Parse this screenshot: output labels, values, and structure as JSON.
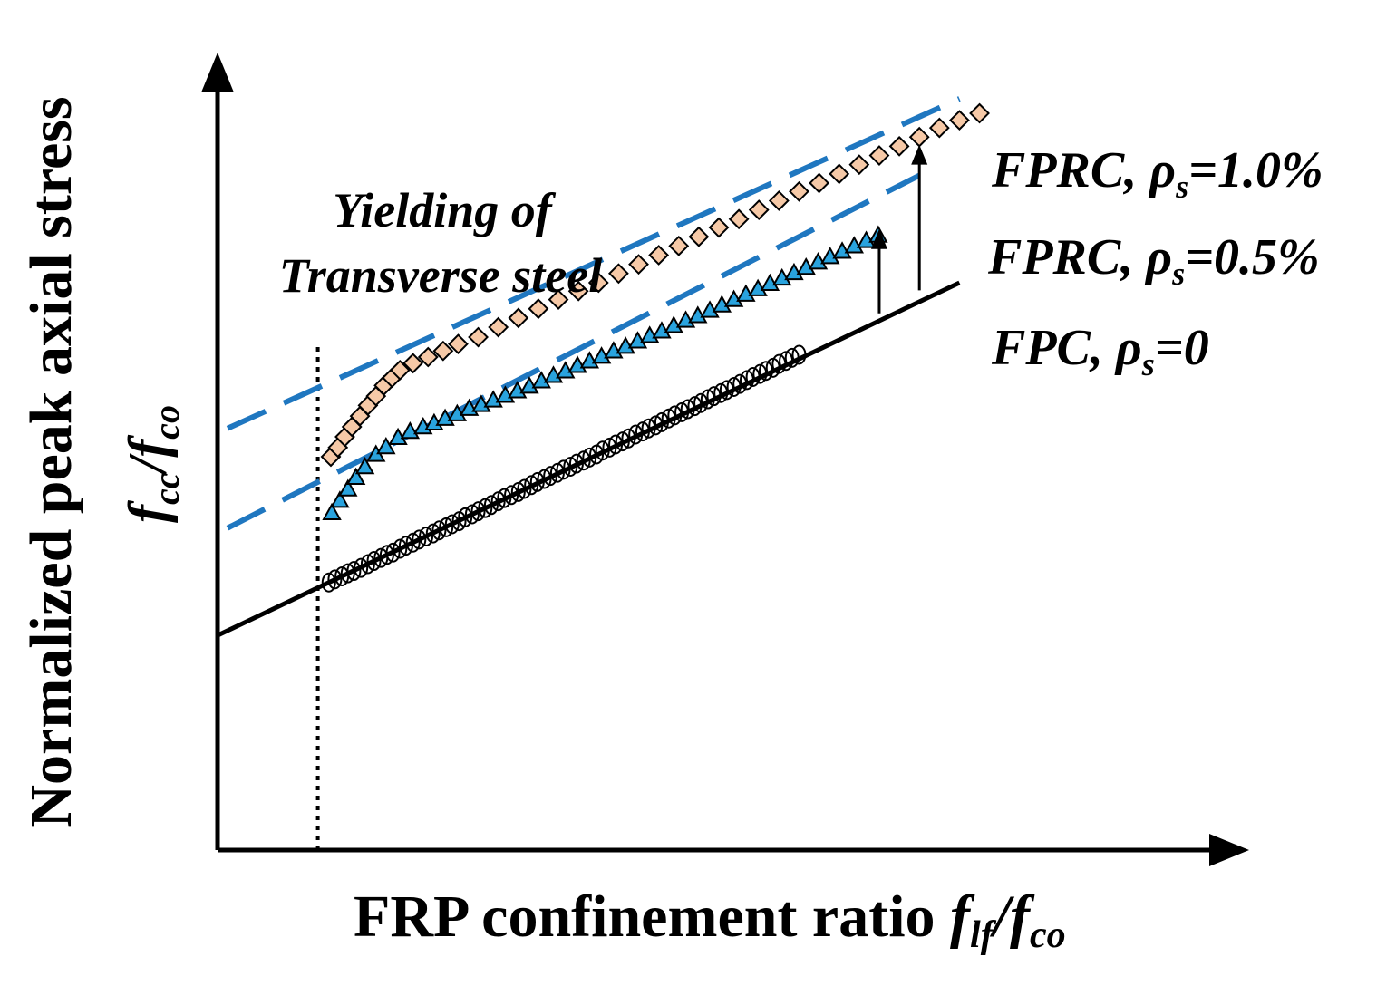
{
  "chart_data": {
    "type": "line",
    "title": "",
    "xlabel": {
      "main": "FRP confinement ratio ",
      "sym": "f",
      "sub1": "lf",
      "slash": "/",
      "sym2": "f",
      "sub2": "co"
    },
    "ylabel": {
      "main": "Normalized peak axial stress",
      "sym": "f",
      "sub1": "cc",
      "slash": "/",
      "sym2": "f",
      "sub2": "co"
    },
    "xlim": [
      0,
      1
    ],
    "ylim": [
      0,
      1
    ],
    "annotation": {
      "line1": "Yielding of",
      "line2": "Transverse steel",
      "x": 0.1
    },
    "series": [
      {
        "name": "FPC",
        "label_prefix": "FPC, ",
        "rho": "ρ",
        "rho_sub": "s",
        "value_text": "=0",
        "color": "#000000",
        "marker": "circle",
        "line": [
          [
            0,
            0.28
          ],
          [
            0.74,
            0.74
          ]
        ],
        "points": [
          [
            0.111,
            0.349
          ],
          [
            0.117,
            0.353
          ],
          [
            0.124,
            0.357
          ],
          [
            0.13,
            0.361
          ],
          [
            0.136,
            0.364
          ],
          [
            0.143,
            0.368
          ],
          [
            0.15,
            0.373
          ],
          [
            0.156,
            0.377
          ],
          [
            0.163,
            0.381
          ],
          [
            0.169,
            0.385
          ],
          [
            0.175,
            0.388
          ],
          [
            0.182,
            0.393
          ],
          [
            0.188,
            0.397
          ],
          [
            0.195,
            0.401
          ],
          [
            0.201,
            0.405
          ],
          [
            0.208,
            0.409
          ],
          [
            0.215,
            0.413
          ],
          [
            0.221,
            0.417
          ],
          [
            0.228,
            0.421
          ],
          [
            0.234,
            0.425
          ],
          [
            0.241,
            0.429
          ],
          [
            0.247,
            0.434
          ],
          [
            0.254,
            0.438
          ],
          [
            0.26,
            0.442
          ],
          [
            0.267,
            0.446
          ],
          [
            0.273,
            0.45
          ],
          [
            0.28,
            0.455
          ],
          [
            0.286,
            0.459
          ],
          [
            0.293,
            0.463
          ],
          [
            0.3,
            0.467
          ],
          [
            0.306,
            0.471
          ],
          [
            0.313,
            0.476
          ],
          [
            0.319,
            0.48
          ],
          [
            0.326,
            0.484
          ],
          [
            0.332,
            0.488
          ],
          [
            0.339,
            0.492
          ],
          [
            0.345,
            0.496
          ],
          [
            0.352,
            0.5
          ],
          [
            0.358,
            0.504
          ],
          [
            0.365,
            0.508
          ],
          [
            0.371,
            0.512
          ],
          [
            0.378,
            0.516
          ],
          [
            0.384,
            0.521
          ],
          [
            0.391,
            0.525
          ],
          [
            0.397,
            0.529
          ],
          [
            0.404,
            0.533
          ],
          [
            0.41,
            0.537
          ],
          [
            0.417,
            0.542
          ],
          [
            0.424,
            0.546
          ],
          [
            0.43,
            0.55
          ],
          [
            0.437,
            0.554
          ],
          [
            0.443,
            0.558
          ],
          [
            0.45,
            0.563
          ],
          [
            0.456,
            0.567
          ],
          [
            0.463,
            0.571
          ],
          [
            0.469,
            0.575
          ],
          [
            0.476,
            0.579
          ],
          [
            0.482,
            0.583
          ],
          [
            0.489,
            0.588
          ],
          [
            0.495,
            0.592
          ],
          [
            0.502,
            0.596
          ],
          [
            0.508,
            0.6
          ],
          [
            0.515,
            0.604
          ],
          [
            0.521,
            0.608
          ],
          [
            0.528,
            0.613
          ],
          [
            0.534,
            0.617
          ],
          [
            0.541,
            0.621
          ],
          [
            0.547,
            0.625
          ],
          [
            0.554,
            0.629
          ],
          [
            0.56,
            0.634
          ],
          [
            0.567,
            0.638
          ],
          [
            0.573,
            0.642
          ],
          [
            0.58,
            0.646
          ]
        ]
      },
      {
        "name": "FPRC, ρs=0.5%",
        "label_prefix": "FPRC, ",
        "rho": "ρ",
        "rho_sub": "s",
        "value_text": "=0.5%",
        "color": "#1f77c0",
        "marker": "triangle",
        "line": [
          [
            0.01,
            0.42
          ],
          [
            0.7,
            0.88
          ]
        ],
        "points": [
          [
            0.114,
            0.44
          ],
          [
            0.122,
            0.456
          ],
          [
            0.13,
            0.471
          ],
          [
            0.138,
            0.486
          ],
          [
            0.147,
            0.5
          ],
          [
            0.158,
            0.516
          ],
          [
            0.168,
            0.526
          ],
          [
            0.18,
            0.538
          ],
          [
            0.192,
            0.546
          ],
          [
            0.205,
            0.552
          ],
          [
            0.216,
            0.557
          ],
          [
            0.227,
            0.563
          ],
          [
            0.239,
            0.569
          ],
          [
            0.251,
            0.576
          ],
          [
            0.263,
            0.581
          ],
          [
            0.275,
            0.587
          ],
          [
            0.287,
            0.593
          ],
          [
            0.299,
            0.599
          ],
          [
            0.311,
            0.605
          ],
          [
            0.323,
            0.612
          ],
          [
            0.335,
            0.619
          ],
          [
            0.347,
            0.625
          ],
          [
            0.359,
            0.632
          ],
          [
            0.371,
            0.638
          ],
          [
            0.383,
            0.644
          ],
          [
            0.395,
            0.651
          ],
          [
            0.407,
            0.657
          ],
          [
            0.419,
            0.664
          ],
          [
            0.431,
            0.671
          ],
          [
            0.443,
            0.677
          ],
          [
            0.455,
            0.684
          ],
          [
            0.467,
            0.691
          ],
          [
            0.479,
            0.697
          ],
          [
            0.491,
            0.704
          ],
          [
            0.503,
            0.711
          ],
          [
            0.515,
            0.718
          ],
          [
            0.527,
            0.725
          ],
          [
            0.539,
            0.732
          ],
          [
            0.551,
            0.739
          ],
          [
            0.563,
            0.746
          ],
          [
            0.575,
            0.753
          ],
          [
            0.587,
            0.76
          ],
          [
            0.599,
            0.767
          ],
          [
            0.611,
            0.774
          ],
          [
            0.623,
            0.781
          ],
          [
            0.635,
            0.788
          ],
          [
            0.647,
            0.795
          ],
          [
            0.659,
            0.802
          ]
        ]
      },
      {
        "name": "FPRC, ρs=1.0%",
        "label_prefix": "FPRC, ",
        "rho": "ρ",
        "rho_sub": "s",
        "value_text": "=1.0%",
        "color": "#1f77c0",
        "marker": "diamond",
        "line": [
          [
            0.01,
            0.55
          ],
          [
            0.74,
            0.98
          ]
        ],
        "points": [
          [
            0.113,
            0.513
          ],
          [
            0.12,
            0.525
          ],
          [
            0.127,
            0.539
          ],
          [
            0.134,
            0.552
          ],
          [
            0.142,
            0.566
          ],
          [
            0.15,
            0.58
          ],
          [
            0.158,
            0.592
          ],
          [
            0.166,
            0.606
          ],
          [
            0.174,
            0.616
          ],
          [
            0.182,
            0.626
          ],
          [
            0.195,
            0.635
          ],
          [
            0.21,
            0.643
          ],
          [
            0.225,
            0.651
          ],
          [
            0.24,
            0.66
          ],
          [
            0.26,
            0.669
          ],
          [
            0.28,
            0.682
          ],
          [
            0.3,
            0.694
          ],
          [
            0.32,
            0.706
          ],
          [
            0.34,
            0.718
          ],
          [
            0.36,
            0.729
          ],
          [
            0.38,
            0.74
          ],
          [
            0.4,
            0.752
          ],
          [
            0.42,
            0.764
          ],
          [
            0.44,
            0.776
          ],
          [
            0.46,
            0.788
          ],
          [
            0.48,
            0.8
          ],
          [
            0.5,
            0.812
          ],
          [
            0.52,
            0.823
          ],
          [
            0.54,
            0.835
          ],
          [
            0.56,
            0.847
          ],
          [
            0.58,
            0.859
          ],
          [
            0.6,
            0.87
          ],
          [
            0.62,
            0.882
          ],
          [
            0.64,
            0.894
          ],
          [
            0.66,
            0.906
          ],
          [
            0.68,
            0.918
          ],
          [
            0.7,
            0.93
          ],
          [
            0.72,
            0.942
          ],
          [
            0.74,
            0.952
          ],
          [
            0.76,
            0.961
          ]
        ]
      }
    ],
    "arrows": [
      {
        "x": 0.66,
        "from_y": 0.7,
        "to_y": 0.81
      },
      {
        "x": 0.7,
        "from_y": 0.73,
        "to_y": 0.92
      }
    ],
    "grid": false,
    "legend": "inline labels at right"
  }
}
